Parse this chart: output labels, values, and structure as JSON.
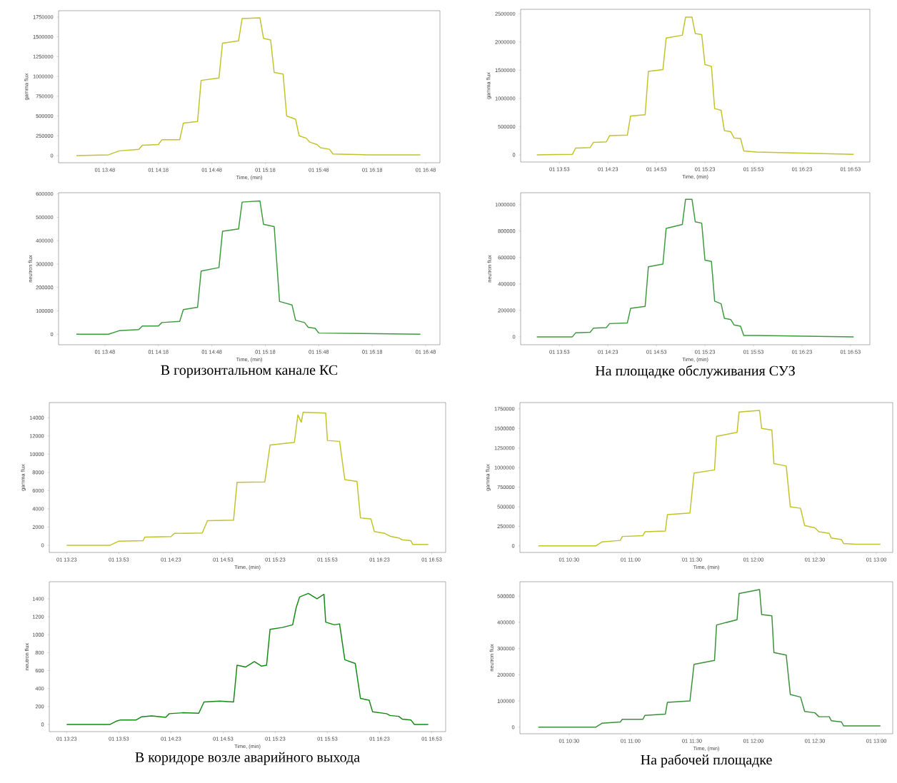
{
  "chart_data": [
    {
      "type": "line",
      "xlabel": "Time, (min)",
      "ylabel": "gamma flux",
      "xlim": [
        "2000-01-01T13:22",
        "2000-01-01T16:56"
      ],
      "ylim": [
        -90000,
        1830000
      ],
      "xticks": [
        {
          "value": "2000-01-01T13:48",
          "label": "01 13:48"
        },
        {
          "value": "2000-01-01T14:18",
          "label": "01 14:18"
        },
        {
          "value": "2000-01-01T14:48",
          "label": "01 14:48"
        },
        {
          "value": "2000-01-01T15:18",
          "label": "01 15:18"
        },
        {
          "value": "2000-01-01T15:48",
          "label": "01 15:48"
        },
        {
          "value": "2000-01-01T16:18",
          "label": "01 16:18"
        },
        {
          "value": "2000-01-01T16:48",
          "label": "01 16:48"
        }
      ],
      "yticks": [
        0,
        250000,
        500000,
        750000,
        1000000,
        1250000,
        1500000,
        1750000
      ],
      "series": [
        {
          "color": "#c2c22a",
          "x": [
            "2000-01-01T13:32",
            "2000-01-01T13:50",
            "2000-01-01T13:56",
            "2000-01-01T14:07",
            "2000-01-01T14:09",
            "2000-01-01T14:18",
            "2000-01-01T14:20",
            "2000-01-01T14:30",
            "2000-01-01T14:32",
            "2000-01-01T14:40",
            "2000-01-01T14:42",
            "2000-01-01T14:52",
            "2000-01-01T14:54",
            "2000-01-01T15:03",
            "2000-01-01T15:05",
            "2000-01-01T15:15",
            "2000-01-01T15:17",
            "2000-01-01T15:21",
            "2000-01-01T15:23",
            "2000-01-01T15:28",
            "2000-01-01T15:30",
            "2000-01-01T15:35",
            "2000-01-01T15:37",
            "2000-01-01T15:41",
            "2000-01-01T15:43",
            "2000-01-01T15:47",
            "2000-01-01T15:49",
            "2000-01-01T15:54",
            "2000-01-01T15:56",
            "2000-01-01T16:15",
            "2000-01-01T16:45"
          ],
          "values": [
            0,
            10000,
            60000,
            80000,
            130000,
            140000,
            200000,
            200000,
            410000,
            430000,
            950000,
            980000,
            1420000,
            1450000,
            1730000,
            1740000,
            1480000,
            1460000,
            1050000,
            1030000,
            500000,
            460000,
            250000,
            220000,
            170000,
            140000,
            100000,
            80000,
            20000,
            10000,
            10000
          ]
        }
      ]
    },
    {
      "type": "line",
      "xlabel": "Time, (min)",
      "ylabel": "neutron flux",
      "xlim": [
        "2000-01-01T13:22",
        "2000-01-01T16:56"
      ],
      "ylim": [
        -45000,
        605000
      ],
      "xticks": [
        {
          "value": "2000-01-01T13:48",
          "label": "01 13:48"
        },
        {
          "value": "2000-01-01T14:18",
          "label": "01 14:18"
        },
        {
          "value": "2000-01-01T14:48",
          "label": "01 14:48"
        },
        {
          "value": "2000-01-01T15:18",
          "label": "01 15:18"
        },
        {
          "value": "2000-01-01T15:48",
          "label": "01 15:48"
        },
        {
          "value": "2000-01-01T16:18",
          "label": "01 16:18"
        },
        {
          "value": "2000-01-01T16:48",
          "label": "01 16:48"
        }
      ],
      "yticks": [
        0,
        100000,
        200000,
        300000,
        400000,
        500000,
        600000
      ],
      "annotations": [
        "В горизонтальном канале КС"
      ],
      "series": [
        {
          "color": "#3c9a3c",
          "x": [
            "2000-01-01T13:32",
            "2000-01-01T13:50",
            "2000-01-01T13:56",
            "2000-01-01T14:07",
            "2000-01-01T14:09",
            "2000-01-01T14:18",
            "2000-01-01T14:20",
            "2000-01-01T14:30",
            "2000-01-01T14:32",
            "2000-01-01T14:40",
            "2000-01-01T14:42",
            "2000-01-01T14:52",
            "2000-01-01T14:54",
            "2000-01-01T15:03",
            "2000-01-01T15:05",
            "2000-01-01T15:15",
            "2000-01-01T15:17",
            "2000-01-01T15:23",
            "2000-01-01T15:26",
            "2000-01-01T15:33",
            "2000-01-01T15:35",
            "2000-01-01T15:40",
            "2000-01-01T15:42",
            "2000-01-01T15:46",
            "2000-01-01T15:48",
            "2000-01-01T16:45"
          ],
          "values": [
            0,
            0,
            15000,
            20000,
            35000,
            35000,
            50000,
            55000,
            105000,
            115000,
            270000,
            285000,
            440000,
            450000,
            565000,
            570000,
            470000,
            460000,
            140000,
            125000,
            60000,
            50000,
            30000,
            25000,
            5000,
            0
          ]
        }
      ]
    },
    {
      "type": "line",
      "xlabel": "Time, (min)",
      "ylabel": "gamma flux",
      "xlim": [
        "2000-01-01T13:29",
        "2000-01-01T17:05"
      ],
      "ylim": [
        -127000,
        2580000
      ],
      "xticks": [
        {
          "value": "2000-01-01T13:53",
          "label": "01 13:53"
        },
        {
          "value": "2000-01-01T14:23",
          "label": "01 14:23"
        },
        {
          "value": "2000-01-01T14:53",
          "label": "01 14:53"
        },
        {
          "value": "2000-01-01T15:23",
          "label": "01 15:23"
        },
        {
          "value": "2000-01-01T15:53",
          "label": "01 15:53"
        },
        {
          "value": "2000-01-01T16:23",
          "label": "01 16:23"
        },
        {
          "value": "2000-01-01T16:53",
          "label": "01 16:53"
        }
      ],
      "yticks": [
        0,
        500000,
        1000000,
        1500000,
        2000000,
        2500000
      ],
      "series": [
        {
          "color": "#c2c22a",
          "x": [
            "2000-01-01T13:39",
            "2000-01-01T14:01",
            "2000-01-01T14:03",
            "2000-01-01T14:12",
            "2000-01-01T14:14",
            "2000-01-01T14:22",
            "2000-01-01T14:24",
            "2000-01-01T14:35",
            "2000-01-01T14:37",
            "2000-01-01T14:46",
            "2000-01-01T14:48",
            "2000-01-01T14:57",
            "2000-01-01T14:59",
            "2000-01-01T15:09",
            "2000-01-01T15:11",
            "2000-01-01T15:15",
            "2000-01-01T15:17",
            "2000-01-01T15:21",
            "2000-01-01T15:23",
            "2000-01-01T15:27",
            "2000-01-01T15:29",
            "2000-01-01T15:33",
            "2000-01-01T15:35",
            "2000-01-01T15:39",
            "2000-01-01T15:41",
            "2000-01-01T15:45",
            "2000-01-01T15:47",
            "2000-01-01T15:55",
            "2000-01-01T16:55"
          ],
          "values": [
            0,
            10000,
            120000,
            130000,
            220000,
            230000,
            340000,
            350000,
            690000,
            710000,
            1480000,
            1510000,
            2070000,
            2120000,
            2440000,
            2440000,
            2150000,
            2130000,
            1600000,
            1570000,
            820000,
            790000,
            430000,
            410000,
            300000,
            290000,
            70000,
            50000,
            10000
          ]
        }
      ]
    },
    {
      "type": "line",
      "xlabel": "Time, (min)",
      "ylabel": "neutron flux",
      "xlim": [
        "2000-01-01T13:29",
        "2000-01-01T17:05"
      ],
      "ylim": [
        -60000,
        1090000
      ],
      "xticks": [
        {
          "value": "2000-01-01T13:53",
          "label": "01 13:53"
        },
        {
          "value": "2000-01-01T14:23",
          "label": "01 14:23"
        },
        {
          "value": "2000-01-01T14:53",
          "label": "01 14:53"
        },
        {
          "value": "2000-01-01T15:23",
          "label": "01 15:23"
        },
        {
          "value": "2000-01-01T15:53",
          "label": "01 15:53"
        },
        {
          "value": "2000-01-01T16:23",
          "label": "01 16:23"
        },
        {
          "value": "2000-01-01T16:53",
          "label": "01 16:53"
        }
      ],
      "yticks": [
        0,
        200000,
        400000,
        600000,
        800000,
        1000000
      ],
      "annotations": [
        "На площадке обслуживания СУЗ"
      ],
      "series": [
        {
          "color": "#3c9a3c",
          "x": [
            "2000-01-01T13:39",
            "2000-01-01T14:01",
            "2000-01-01T14:03",
            "2000-01-01T14:12",
            "2000-01-01T14:14",
            "2000-01-01T14:22",
            "2000-01-01T14:24",
            "2000-01-01T14:35",
            "2000-01-01T14:37",
            "2000-01-01T14:46",
            "2000-01-01T14:48",
            "2000-01-01T14:57",
            "2000-01-01T14:59",
            "2000-01-01T15:09",
            "2000-01-01T15:11",
            "2000-01-01T15:15",
            "2000-01-01T15:17",
            "2000-01-01T15:21",
            "2000-01-01T15:23",
            "2000-01-01T15:27",
            "2000-01-01T15:29",
            "2000-01-01T15:33",
            "2000-01-01T15:35",
            "2000-01-01T15:39",
            "2000-01-01T15:41",
            "2000-01-01T15:45",
            "2000-01-01T15:47",
            "2000-01-01T15:55",
            "2000-01-01T16:55"
          ],
          "values": [
            0,
            0,
            30000,
            35000,
            65000,
            70000,
            100000,
            105000,
            215000,
            230000,
            530000,
            550000,
            820000,
            850000,
            1040000,
            1040000,
            870000,
            860000,
            580000,
            570000,
            270000,
            250000,
            140000,
            130000,
            90000,
            80000,
            10000,
            10000,
            0
          ]
        }
      ]
    },
    {
      "type": "line",
      "xlabel": "Time, (min)",
      "ylabel": "gamma flux",
      "xlim": [
        "2000-01-01T13:13",
        "2000-01-01T17:01"
      ],
      "ylim": [
        -790,
        15660
      ],
      "xticks": [
        {
          "value": "2000-01-01T13:23",
          "label": "01 13:23"
        },
        {
          "value": "2000-01-01T13:53",
          "label": "01 13:53"
        },
        {
          "value": "2000-01-01T14:23",
          "label": "01 14:23"
        },
        {
          "value": "2000-01-01T14:53",
          "label": "01 14:53"
        },
        {
          "value": "2000-01-01T15:23",
          "label": "01 15:23"
        },
        {
          "value": "2000-01-01T15:53",
          "label": "01 15:53"
        },
        {
          "value": "2000-01-01T16:23",
          "label": "01 16:23"
        },
        {
          "value": "2000-01-01T16:53",
          "label": "01 16:53"
        }
      ],
      "yticks": [
        0,
        2000,
        4000,
        6000,
        8000,
        10000,
        12000,
        14000
      ],
      "series": [
        {
          "color": "#c2c22a",
          "x": [
            "2000-01-01T13:23",
            "2000-01-01T13:48",
            "2000-01-01T13:53",
            "2000-01-01T14:07",
            "2000-01-01T14:08",
            "2000-01-01T14:23",
            "2000-01-01T14:25",
            "2000-01-01T14:41",
            "2000-01-01T14:44",
            "2000-01-01T14:59",
            "2000-01-01T15:01",
            "2000-01-01T15:17",
            "2000-01-01T15:20",
            "2000-01-01T15:34",
            "2000-01-01T15:36",
            "2000-01-01T15:38",
            "2000-01-01T15:39",
            "2000-01-01T15:52",
            "2000-01-01T15:53",
            "2000-01-01T16:00",
            "2000-01-01T16:03",
            "2000-01-01T16:10",
            "2000-01-01T16:12",
            "2000-01-01T16:18",
            "2000-01-01T16:20",
            "2000-01-01T16:26",
            "2000-01-01T16:29",
            "2000-01-01T16:34",
            "2000-01-01T16:36",
            "2000-01-01T16:41",
            "2000-01-01T16:42",
            "2000-01-01T16:51"
          ],
          "values": [
            0,
            0,
            450,
            500,
            900,
            950,
            1300,
            1350,
            2700,
            2750,
            6900,
            6950,
            11000,
            11300,
            14300,
            13500,
            14600,
            14500,
            11500,
            11400,
            7200,
            7000,
            3000,
            2900,
            1500,
            1300,
            1000,
            800,
            600,
            500,
            100,
            100
          ]
        }
      ]
    },
    {
      "type": "line",
      "xlabel": "Time, (min)",
      "ylabel": "neutron flux",
      "xlim": [
        "2000-01-01T13:13",
        "2000-01-01T17:01"
      ],
      "ylim": [
        -80,
        1590
      ],
      "xticks": [
        {
          "value": "2000-01-01T13:23",
          "label": "01 13:23"
        },
        {
          "value": "2000-01-01T13:53",
          "label": "01 13:53"
        },
        {
          "value": "2000-01-01T14:23",
          "label": "01 14:23"
        },
        {
          "value": "2000-01-01T14:53",
          "label": "01 14:53"
        },
        {
          "value": "2000-01-01T15:23",
          "label": "01 15:23"
        },
        {
          "value": "2000-01-01T15:53",
          "label": "01 15:53"
        },
        {
          "value": "2000-01-01T16:23",
          "label": "01 16:23"
        },
        {
          "value": "2000-01-01T16:53",
          "label": "01 16:53"
        }
      ],
      "yticks": [
        0,
        200,
        400,
        600,
        800,
        1000,
        1200,
        1400
      ],
      "annotations": [
        "В коридоре возле аварийного выхода"
      ],
      "series": [
        {
          "color": "#118a11",
          "x": [
            "2000-01-01T13:23",
            "2000-01-01T13:48",
            "2000-01-01T13:52",
            "2000-01-01T13:54",
            "2000-01-01T14:03",
            "2000-01-01T14:06",
            "2000-01-01T14:12",
            "2000-01-01T14:20",
            "2000-01-01T14:22",
            "2000-01-01T14:30",
            "2000-01-01T14:39",
            "2000-01-01T14:42",
            "2000-01-01T14:51",
            "2000-01-01T14:59",
            "2000-01-01T15:01",
            "2000-01-01T15:06",
            "2000-01-01T15:11",
            "2000-01-01T15:15",
            "2000-01-01T15:18",
            "2000-01-01T15:20",
            "2000-01-01T15:27",
            "2000-01-01T15:33",
            "2000-01-01T15:35",
            "2000-01-01T15:37",
            "2000-01-01T15:42",
            "2000-01-01T15:47",
            "2000-01-01T15:51",
            "2000-01-01T15:52",
            "2000-01-01T15:57",
            "2000-01-01T16:00",
            "2000-01-01T16:03",
            "2000-01-01T16:09",
            "2000-01-01T16:12",
            "2000-01-01T16:17",
            "2000-01-01T16:19",
            "2000-01-01T16:27",
            "2000-01-01T16:29",
            "2000-01-01T16:34",
            "2000-01-01T16:36",
            "2000-01-01T16:41",
            "2000-01-01T16:43",
            "2000-01-01T16:51"
          ],
          "values": [
            0,
            0,
            40,
            50,
            50,
            85,
            95,
            80,
            120,
            130,
            125,
            250,
            260,
            250,
            660,
            640,
            700,
            650,
            660,
            1060,
            1080,
            1110,
            1300,
            1420,
            1460,
            1400,
            1450,
            1140,
            1110,
            1120,
            720,
            680,
            290,
            270,
            140,
            120,
            100,
            90,
            60,
            50,
            0,
            0
          ]
        }
      ]
    },
    {
      "type": "line",
      "xlabel": "Time, (min)",
      "ylabel": "gamma flux",
      "xlim": [
        "2000-01-01T10:06",
        "2000-01-01T13:08"
      ],
      "ylim": [
        -84000,
        1830000
      ],
      "xticks": [
        {
          "value": "2000-01-01T10:30",
          "label": "01 10:30"
        },
        {
          "value": "2000-01-01T11:00",
          "label": "01 11:00"
        },
        {
          "value": "2000-01-01T11:30",
          "label": "01 11:30"
        },
        {
          "value": "2000-01-01T12:00",
          "label": "01 12:00"
        },
        {
          "value": "2000-01-01T12:30",
          "label": "01 12:30"
        },
        {
          "value": "2000-01-01T13:00",
          "label": "01 13:00"
        }
      ],
      "yticks": [
        0,
        250000,
        500000,
        750000,
        1000000,
        1250000,
        1500000,
        1750000
      ],
      "series": [
        {
          "color": "#c2c22a",
          "x": [
            "2000-01-01T10:15",
            "2000-01-01T10:43",
            "2000-01-01T10:46",
            "2000-01-01T10:55",
            "2000-01-01T10:56",
            "2000-01-01T11:06",
            "2000-01-01T11:07",
            "2000-01-01T11:17",
            "2000-01-01T11:18",
            "2000-01-01T11:29",
            "2000-01-01T11:31",
            "2000-01-01T11:41",
            "2000-01-01T11:42",
            "2000-01-01T11:52",
            "2000-01-01T11:53",
            "2000-01-01T12:03",
            "2000-01-01T12:04",
            "2000-01-01T12:09",
            "2000-01-01T12:10",
            "2000-01-01T12:16",
            "2000-01-01T12:18",
            "2000-01-01T12:23",
            "2000-01-01T12:25",
            "2000-01-01T12:30",
            "2000-01-01T12:32",
            "2000-01-01T12:37",
            "2000-01-01T12:38",
            "2000-01-01T12:43",
            "2000-01-01T12:44",
            "2000-01-01T12:50",
            "2000-01-01T13:02"
          ],
          "values": [
            0,
            0,
            50000,
            70000,
            120000,
            130000,
            180000,
            190000,
            400000,
            420000,
            930000,
            970000,
            1400000,
            1450000,
            1710000,
            1730000,
            1500000,
            1480000,
            1050000,
            1020000,
            500000,
            480000,
            260000,
            230000,
            180000,
            160000,
            100000,
            80000,
            30000,
            20000,
            20000
          ]
        }
      ]
    },
    {
      "type": "line",
      "xlabel": "Time, (min)",
      "ylabel": "neutron flux",
      "xlim": [
        "2000-01-01T10:06",
        "2000-01-01T13:08"
      ],
      "ylim": [
        -25000,
        555000
      ],
      "xticks": [
        {
          "value": "2000-01-01T10:30",
          "label": "01 10:30"
        },
        {
          "value": "2000-01-01T11:00",
          "label": "01 11:00"
        },
        {
          "value": "2000-01-01T11:30",
          "label": "01 11:30"
        },
        {
          "value": "2000-01-01T12:00",
          "label": "01 12:00"
        },
        {
          "value": "2000-01-01T12:30",
          "label": "01 12:30"
        },
        {
          "value": "2000-01-01T13:00",
          "label": "01 13:00"
        }
      ],
      "yticks": [
        0,
        100000,
        200000,
        300000,
        400000,
        500000
      ],
      "annotations": [
        "На рабочей площадке"
      ],
      "series": [
        {
          "color": "#3a8f3a",
          "x": [
            "2000-01-01T10:15",
            "2000-01-01T10:43",
            "2000-01-01T10:46",
            "2000-01-01T10:55",
            "2000-01-01T10:56",
            "2000-01-01T11:06",
            "2000-01-01T11:07",
            "2000-01-01T11:17",
            "2000-01-01T11:18",
            "2000-01-01T11:29",
            "2000-01-01T11:31",
            "2000-01-01T11:41",
            "2000-01-01T11:42",
            "2000-01-01T11:52",
            "2000-01-01T11:53",
            "2000-01-01T12:03",
            "2000-01-01T12:04",
            "2000-01-01T12:09",
            "2000-01-01T12:10",
            "2000-01-01T12:16",
            "2000-01-01T12:18",
            "2000-01-01T12:23",
            "2000-01-01T12:25",
            "2000-01-01T12:30",
            "2000-01-01T12:32",
            "2000-01-01T12:37",
            "2000-01-01T12:38",
            "2000-01-01T12:43",
            "2000-01-01T12:44",
            "2000-01-01T12:50",
            "2000-01-01T13:02"
          ],
          "values": [
            0,
            0,
            15000,
            20000,
            30000,
            30000,
            45000,
            50000,
            95000,
            100000,
            240000,
            255000,
            390000,
            410000,
            510000,
            525000,
            430000,
            425000,
            285000,
            275000,
            125000,
            115000,
            60000,
            55000,
            40000,
            40000,
            25000,
            20000,
            5000,
            5000,
            5000
          ]
        }
      ]
    }
  ]
}
